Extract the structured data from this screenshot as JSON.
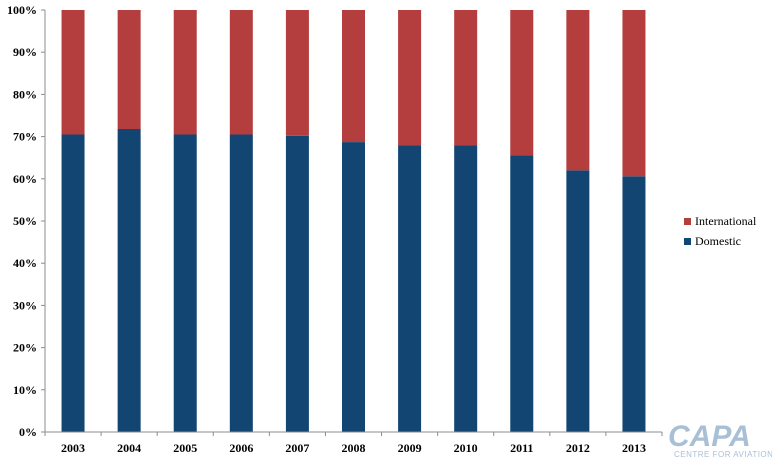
{
  "chart_data": {
    "type": "bar",
    "stacked": true,
    "percent": true,
    "categories": [
      "2003",
      "2004",
      "2005",
      "2006",
      "2007",
      "2008",
      "2009",
      "2010",
      "2011",
      "2012",
      "2013"
    ],
    "series": [
      {
        "name": "Domestic",
        "color": "#124572",
        "values": [
          70.5,
          71.8,
          70.5,
          70.5,
          70.2,
          68.7,
          67.9,
          67.9,
          65.6,
          62.0,
          60.6
        ]
      },
      {
        "name": "International",
        "color": "#b43d3d",
        "values": [
          29.5,
          28.2,
          29.5,
          29.5,
          29.8,
          31.3,
          32.1,
          32.1,
          34.4,
          38.0,
          39.4
        ]
      }
    ],
    "y_ticks": [
      "0%",
      "10%",
      "20%",
      "30%",
      "40%",
      "50%",
      "60%",
      "70%",
      "80%",
      "90%",
      "100%"
    ],
    "ylim": [
      0,
      100
    ],
    "grid": false,
    "legend_position": "right",
    "title": "",
    "xlabel": "",
    "ylabel": ""
  },
  "logo": {
    "main": "CAPA",
    "sub": "CENTRE FOR AVIATION"
  }
}
